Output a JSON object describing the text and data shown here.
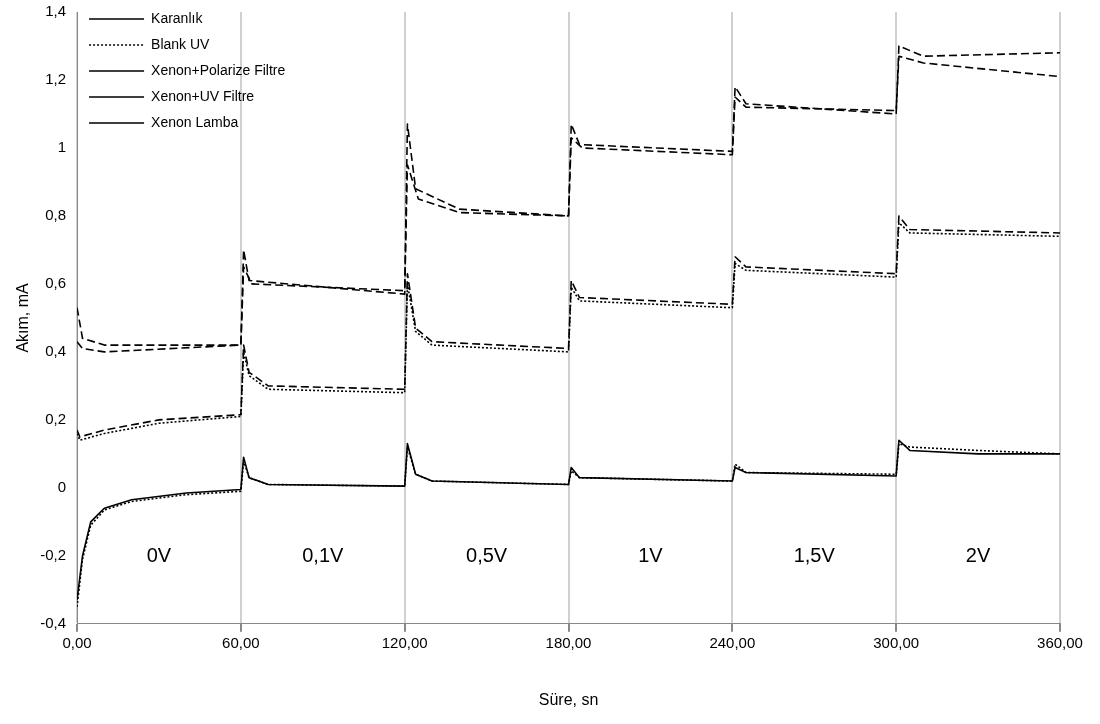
{
  "chart_data": {
    "type": "line",
    "xlabel": "Süre, sn",
    "ylabel": "Akım, mA",
    "xlim": [
      0,
      360
    ],
    "xticks": [
      {
        "value": 0,
        "label": "0,00"
      },
      {
        "value": 60,
        "label": "60,00"
      },
      {
        "value": 120,
        "label": "120,00"
      },
      {
        "value": 180,
        "label": "180,00"
      },
      {
        "value": 240,
        "label": "240,00"
      },
      {
        "value": 300,
        "label": "300,00"
      },
      {
        "value": 360,
        "label": "360,00"
      }
    ],
    "ylim": [
      -0.4,
      1.4
    ],
    "yticks": [
      {
        "value": -0.4,
        "label": "-0,4"
      },
      {
        "value": -0.2,
        "label": "-0,2"
      },
      0,
      {
        "value": 0.2,
        "label": "0,2"
      },
      {
        "value": 0.4,
        "label": "0,4"
      },
      {
        "value": 0.6,
        "label": "0,6"
      },
      {
        "value": 0.8,
        "label": "0,8"
      },
      1,
      {
        "value": 1.2,
        "label": "1,2"
      },
      {
        "value": 1.4,
        "label": "1,4"
      }
    ],
    "grid": "x",
    "legend": "top left",
    "marker": "none",
    "series": [
      {
        "name": "Karanlık",
        "color": "#000000",
        "line_style": "solid",
        "x": [
          0,
          2,
          5,
          10,
          20,
          40,
          60,
          61,
          63,
          70,
          120,
          121,
          124,
          130,
          180,
          181,
          184,
          240,
          241,
          245,
          300,
          301,
          305,
          330,
          360
        ],
        "values": [
          -0.33,
          -0.2,
          -0.1,
          -0.06,
          -0.035,
          -0.015,
          -0.005,
          0.09,
          0.03,
          0.01,
          0.005,
          0.13,
          0.04,
          0.02,
          0.01,
          0.06,
          0.03,
          0.02,
          0.06,
          0.045,
          0.035,
          0.14,
          0.11,
          0.1,
          0.1
        ]
      },
      {
        "name": "Blank UV",
        "color": "#000000",
        "line_style": "dotted",
        "x": [
          0,
          2,
          5,
          10,
          20,
          40,
          60,
          61,
          63,
          70,
          120,
          121,
          124,
          130,
          180,
          181,
          184,
          240,
          241,
          245,
          300,
          301,
          305,
          330,
          360
        ],
        "values": [
          -0.35,
          -0.21,
          -0.11,
          -0.065,
          -0.04,
          -0.02,
          -0.01,
          0.08,
          0.03,
          0.01,
          0.005,
          0.12,
          0.04,
          0.02,
          0.01,
          0.05,
          0.03,
          0.02,
          0.07,
          0.045,
          0.04,
          0.13,
          0.12,
          0.11,
          0.1
        ]
      },
      {
        "name": "Xenon+Polarize Filtre",
        "color": "#000000",
        "line_style": "dashed",
        "x": [
          0,
          1,
          10,
          30,
          60,
          61,
          63,
          70,
          120,
          121,
          124,
          130,
          180,
          181,
          184,
          240,
          241,
          245,
          300,
          301,
          305,
          360
        ],
        "values": [
          0.17,
          0.15,
          0.17,
          0.2,
          0.215,
          0.42,
          0.34,
          0.3,
          0.29,
          0.63,
          0.47,
          0.43,
          0.41,
          0.61,
          0.56,
          0.54,
          0.68,
          0.65,
          0.63,
          0.8,
          0.76,
          0.75
        ]
      },
      {
        "name": "Xenon+UV Filtre",
        "color": "#000000",
        "line_style": "dashed",
        "x": [
          0,
          2,
          10,
          60,
          61,
          64,
          120,
          121,
          125,
          140,
          180,
          181,
          185,
          240,
          241,
          245,
          300,
          301,
          310,
          360
        ],
        "values": [
          0.43,
          0.41,
          0.4,
          0.42,
          0.65,
          0.6,
          0.58,
          0.95,
          0.85,
          0.81,
          0.8,
          1.03,
          1,
          0.98,
          1.15,
          1.12,
          1.11,
          1.27,
          1.25,
          1.21
        ]
      },
      {
        "color": "#000000",
        "line_style": "dotted",
        "x": [
          0,
          1,
          10,
          30,
          60,
          61,
          63,
          70,
          120,
          121,
          124,
          130,
          180,
          181,
          184,
          240,
          241,
          245,
          300,
          301,
          305,
          360
        ],
        "values": [
          0.16,
          0.14,
          0.16,
          0.19,
          0.21,
          0.4,
          0.33,
          0.29,
          0.28,
          0.6,
          0.46,
          0.42,
          0.4,
          0.59,
          0.55,
          0.53,
          0.66,
          0.64,
          0.62,
          0.78,
          0.75,
          0.74
        ]
      },
      {
        "name": "Xenon Lamba",
        "color": "#000000",
        "line_style": "dashed",
        "x": [
          0,
          2,
          10,
          60,
          61,
          63,
          120,
          121,
          124,
          140,
          180,
          181,
          184,
          240,
          241,
          245,
          300,
          301,
          310,
          360
        ],
        "values": [
          0.53,
          0.44,
          0.42,
          0.42,
          0.7,
          0.61,
          0.57,
          1.07,
          0.88,
          0.82,
          0.8,
          1.07,
          1.01,
          0.99,
          1.18,
          1.13,
          1.1,
          1.3,
          1.27,
          1.28
        ]
      }
    ],
    "annotations": [
      "0V",
      "0,1V",
      "0,5V",
      "1V",
      "1,5V",
      "2V"
    ]
  }
}
